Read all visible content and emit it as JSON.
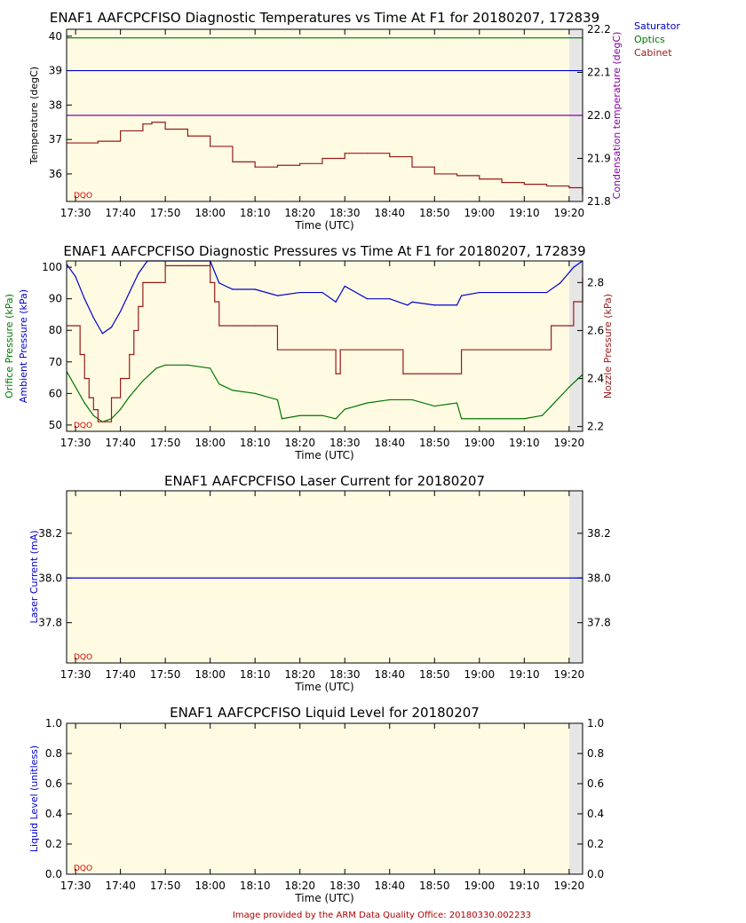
{
  "colors": {
    "plot_bg": "#fffbe3",
    "shade": "#e6e6e6",
    "saturator": "#0000cc",
    "optics": "#007700",
    "cabinet": "#991a1a",
    "condensation": "#8800aa",
    "dqo": "#cc0000"
  },
  "dqo_label": "DQO",
  "footer": "Image provided by the ARM Data Quality Office: 20180330.002233",
  "chart_data": [
    {
      "type": "line",
      "title": "ENAF1 AAFCPCFISO Diagnostic Temperatures vs Time At F1 for 20180207, 172839",
      "xlabel": "Time (UTC)",
      "ylabel_left": "Temperature (degC)",
      "ylabel_right": "Condensation temperature (degC)",
      "x_ticks": [
        "17:30",
        "17:40",
        "17:50",
        "18:00",
        "18:10",
        "18:20",
        "18:30",
        "18:40",
        "18:50",
        "19:00",
        "19:10",
        "19:20"
      ],
      "xlim": [
        "17:28",
        "19:23"
      ],
      "ylim_left": [
        35.2,
        40.2
      ],
      "ylim_right": [
        21.8,
        22.2
      ],
      "y_ticks_left": [
        "36",
        "37",
        "38",
        "39",
        "40"
      ],
      "y_ticks_right": [
        "21.8",
        "21.9",
        "22.0",
        "22.1",
        "22.2"
      ],
      "legend": [
        "Saturator",
        "Optics",
        "Cabinet"
      ],
      "legend_position": "top-right-outside",
      "series": [
        {
          "name": "Saturator",
          "axis": "left",
          "x": [
            "17:28",
            "19:23"
          ],
          "values": [
            39.0,
            39.0
          ]
        },
        {
          "name": "Optics",
          "axis": "left",
          "x": [
            "17:28",
            "19:23"
          ],
          "values": [
            39.95,
            39.95
          ]
        },
        {
          "name": "Cabinet",
          "axis": "left",
          "x": [
            "17:28",
            "17:30",
            "17:35",
            "17:40",
            "17:45",
            "17:47",
            "17:50",
            "17:55",
            "18:00",
            "18:05",
            "18:10",
            "18:15",
            "18:20",
            "18:25",
            "18:30",
            "18:35",
            "18:40",
            "18:45",
            "18:50",
            "18:55",
            "19:00",
            "19:05",
            "19:10",
            "19:15",
            "19:20",
            "19:23"
          ],
          "values": [
            36.9,
            36.9,
            36.95,
            37.25,
            37.45,
            37.5,
            37.3,
            37.1,
            36.8,
            36.35,
            36.2,
            36.25,
            36.3,
            36.45,
            36.6,
            36.6,
            36.5,
            36.2,
            36.0,
            35.95,
            35.85,
            35.75,
            35.7,
            35.65,
            35.6,
            35.4
          ]
        },
        {
          "name": "Condensation temperature",
          "axis": "right",
          "x": [
            "17:28",
            "19:23"
          ],
          "values": [
            22.0,
            22.0
          ]
        }
      ]
    },
    {
      "type": "line",
      "title": "ENAF1 AAFCPCFISO Diagnostic Pressures vs Time At F1 for 20180207, 172839",
      "xlabel": "Time (UTC)",
      "ylabel_left_1": "Orifice Pressure (kPa)",
      "ylabel_left_2": "Ambient Pressure (kPa)",
      "ylabel_right": "Nozzle Pressure (kPa)",
      "x_ticks": [
        "17:30",
        "17:40",
        "17:50",
        "18:00",
        "18:10",
        "18:20",
        "18:30",
        "18:40",
        "18:50",
        "19:00",
        "19:10",
        "19:20"
      ],
      "xlim": [
        "17:28",
        "19:23"
      ],
      "ylim_left": [
        48,
        102
      ],
      "ylim_right": [
        2.18,
        2.89
      ],
      "y_ticks_left": [
        "50",
        "60",
        "70",
        "80",
        "90",
        "100"
      ],
      "y_ticks_right": [
        "2.2",
        "2.4",
        "2.6",
        "2.8"
      ],
      "series": [
        {
          "name": "Ambient Pressure",
          "axis": "left",
          "x": [
            "17:28",
            "17:30",
            "17:32",
            "17:34",
            "17:36",
            "17:38",
            "17:40",
            "17:42",
            "17:44",
            "17:46",
            "18:00",
            "18:02",
            "18:05",
            "18:10",
            "18:15",
            "18:20",
            "18:25",
            "18:28",
            "18:30",
            "18:35",
            "18:40",
            "18:44",
            "18:45",
            "18:50",
            "18:55",
            "18:56",
            "19:00",
            "19:10",
            "19:15",
            "19:18",
            "19:21",
            "19:23"
          ],
          "values": [
            101,
            97,
            90,
            84,
            79,
            81,
            86,
            92,
            98,
            102,
            102,
            95,
            93,
            93,
            91,
            92,
            92,
            89,
            94,
            90,
            90,
            88,
            89,
            88,
            88,
            91,
            92,
            92,
            92,
            95,
            100,
            102
          ]
        },
        {
          "name": "Orifice Pressure",
          "axis": "left",
          "x": [
            "17:28",
            "17:30",
            "17:32",
            "17:34",
            "17:36",
            "17:38",
            "17:40",
            "17:42",
            "17:45",
            "17:48",
            "17:50",
            "17:55",
            "18:00",
            "18:02",
            "18:05",
            "18:10",
            "18:15",
            "18:16",
            "18:20",
            "18:25",
            "18:28",
            "18:30",
            "18:35",
            "18:40",
            "18:45",
            "18:50",
            "18:55",
            "18:56",
            "19:00",
            "19:10",
            "19:14",
            "19:16",
            "19:20",
            "19:23"
          ],
          "values": [
            67,
            62,
            57,
            53,
            51,
            52,
            55,
            59,
            64,
            68,
            69,
            69,
            68,
            63,
            61,
            60,
            58,
            52,
            53,
            53,
            52,
            55,
            57,
            58,
            58,
            56,
            57,
            52,
            52,
            52,
            53,
            56,
            62,
            66
          ]
        },
        {
          "name": "Nozzle Pressure",
          "axis": "right",
          "x": [
            "17:28",
            "17:30",
            "17:31",
            "17:32",
            "17:33",
            "17:34",
            "17:35",
            "17:37",
            "17:38",
            "17:40",
            "17:42",
            "17:43",
            "17:44",
            "17:45",
            "17:50",
            "17:55",
            "18:00",
            "18:01",
            "18:02",
            "18:05",
            "18:10",
            "18:15",
            "18:20",
            "18:25",
            "18:27",
            "18:28",
            "18:29",
            "18:30",
            "18:35",
            "18:40",
            "18:43",
            "18:50",
            "18:55",
            "18:56",
            "19:00",
            "19:05",
            "19:10",
            "19:15",
            "19:16",
            "19:20",
            "19:21",
            "19:23"
          ],
          "values": [
            2.62,
            2.62,
            2.5,
            2.4,
            2.32,
            2.27,
            2.22,
            2.22,
            2.32,
            2.4,
            2.5,
            2.6,
            2.7,
            2.8,
            2.87,
            2.87,
            2.8,
            2.72,
            2.62,
            2.62,
            2.62,
            2.52,
            2.52,
            2.52,
            2.52,
            2.42,
            2.52,
            2.52,
            2.52,
            2.52,
            2.42,
            2.42,
            2.42,
            2.52,
            2.52,
            2.52,
            2.52,
            2.52,
            2.62,
            2.62,
            2.72,
            2.82
          ]
        }
      ]
    },
    {
      "type": "line",
      "title": "ENAF1 AAFCPCFISO Laser Current for 20180207",
      "xlabel": "Time (UTC)",
      "ylabel": "Laser Current (mA)",
      "x_ticks": [
        "17:30",
        "17:40",
        "17:50",
        "18:00",
        "18:10",
        "18:20",
        "18:30",
        "18:40",
        "18:50",
        "19:00",
        "19:10",
        "19:20"
      ],
      "xlim": [
        "17:28",
        "19:23"
      ],
      "ylim": [
        37.62,
        38.39
      ],
      "y_ticks": [
        "37.8",
        "38.0",
        "38.2"
      ],
      "series": [
        {
          "name": "Laser Current",
          "x": [
            "17:28",
            "19:23"
          ],
          "values": [
            38.0,
            38.0
          ]
        }
      ]
    },
    {
      "type": "line",
      "title": "ENAF1 AAFCPCFISO Liquid Level for 20180207",
      "xlabel": "Time (UTC)",
      "ylabel": "Liquid Level (unitless)",
      "x_ticks": [
        "17:30",
        "17:40",
        "17:50",
        "18:00",
        "18:10",
        "18:20",
        "18:30",
        "18:40",
        "18:50",
        "19:00",
        "19:10",
        "19:20"
      ],
      "xlim": [
        "17:28",
        "19:23"
      ],
      "ylim": [
        0.0,
        1.0
      ],
      "y_ticks": [
        "0.0",
        "0.2",
        "0.4",
        "0.6",
        "0.8",
        "1.0"
      ],
      "series": []
    }
  ]
}
